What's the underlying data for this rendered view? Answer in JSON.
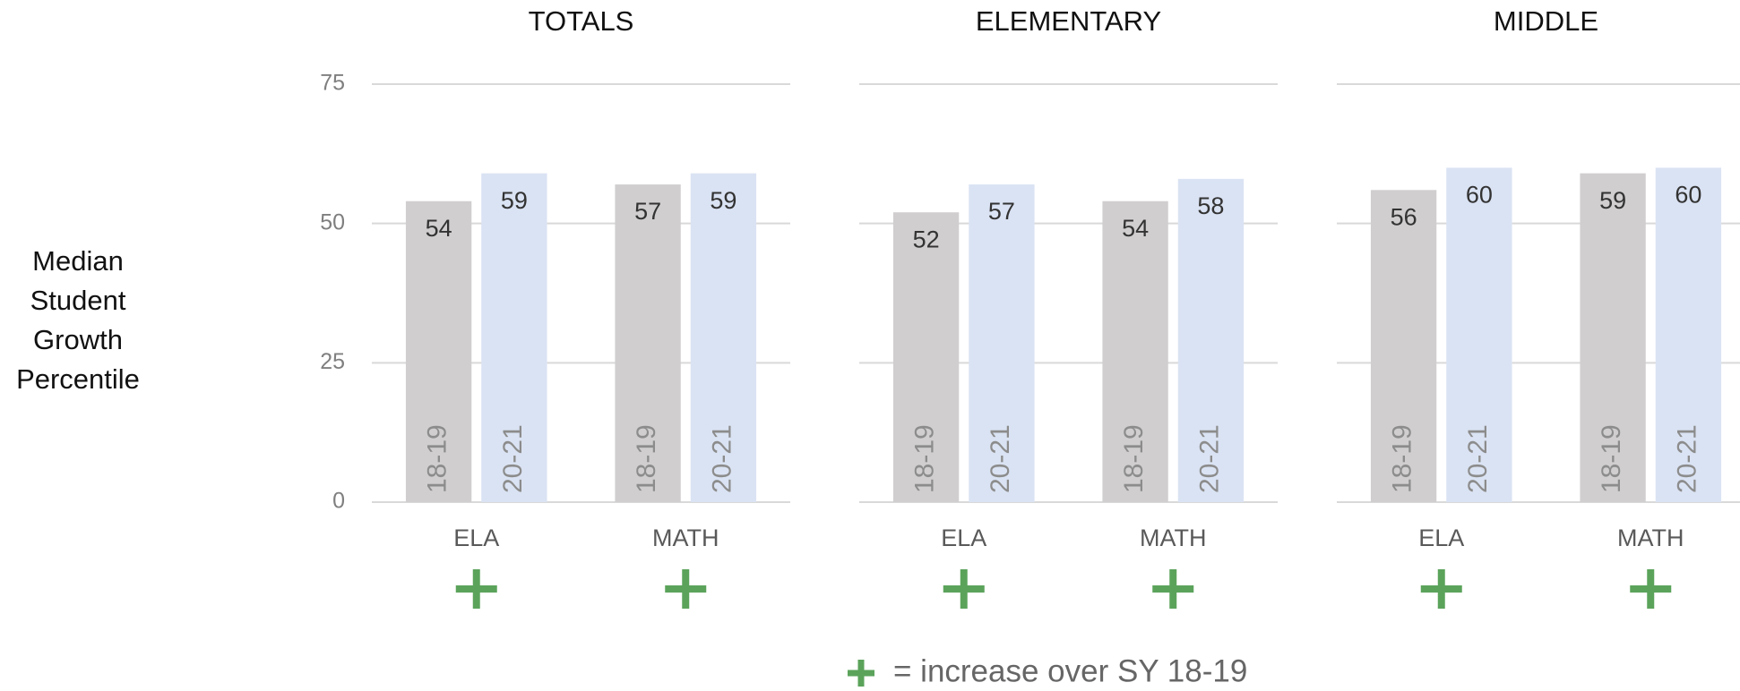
{
  "chart_data": [
    {
      "type": "bar",
      "title": "TOTALS",
      "categories": [
        "ELA",
        "MATH"
      ],
      "series": [
        {
          "name": "18-19",
          "color": "#d0cece",
          "values": [
            54,
            57
          ]
        },
        {
          "name": "20-21",
          "color": "#dae3f3",
          "values": [
            59,
            59
          ]
        }
      ],
      "ylim": [
        0,
        75
      ],
      "yticks": [
        0,
        25,
        50,
        75
      ],
      "grid": true
    },
    {
      "type": "bar",
      "title": "ELEMENTARY",
      "categories": [
        "ELA",
        "MATH"
      ],
      "series": [
        {
          "name": "18-19",
          "color": "#d0cece",
          "values": [
            52,
            54
          ]
        },
        {
          "name": "20-21",
          "color": "#dae3f3",
          "values": [
            57,
            58
          ]
        }
      ],
      "ylim": [
        0,
        75
      ],
      "yticks": [
        0,
        25,
        50,
        75
      ],
      "grid": true
    },
    {
      "type": "bar",
      "title": "MIDDLE",
      "categories": [
        "ELA",
        "MATH"
      ],
      "series": [
        {
          "name": "18-19",
          "color": "#d0cece",
          "values": [
            56,
            59
          ]
        },
        {
          "name": "20-21",
          "color": "#dae3f3",
          "values": [
            60,
            60
          ]
        }
      ],
      "ylim": [
        0,
        75
      ],
      "yticks": [
        0,
        25,
        50,
        75
      ],
      "grid": true
    }
  ],
  "y_label": "Median Student Growth Percentile",
  "legend_text": "= increase over SY 18-19"
}
